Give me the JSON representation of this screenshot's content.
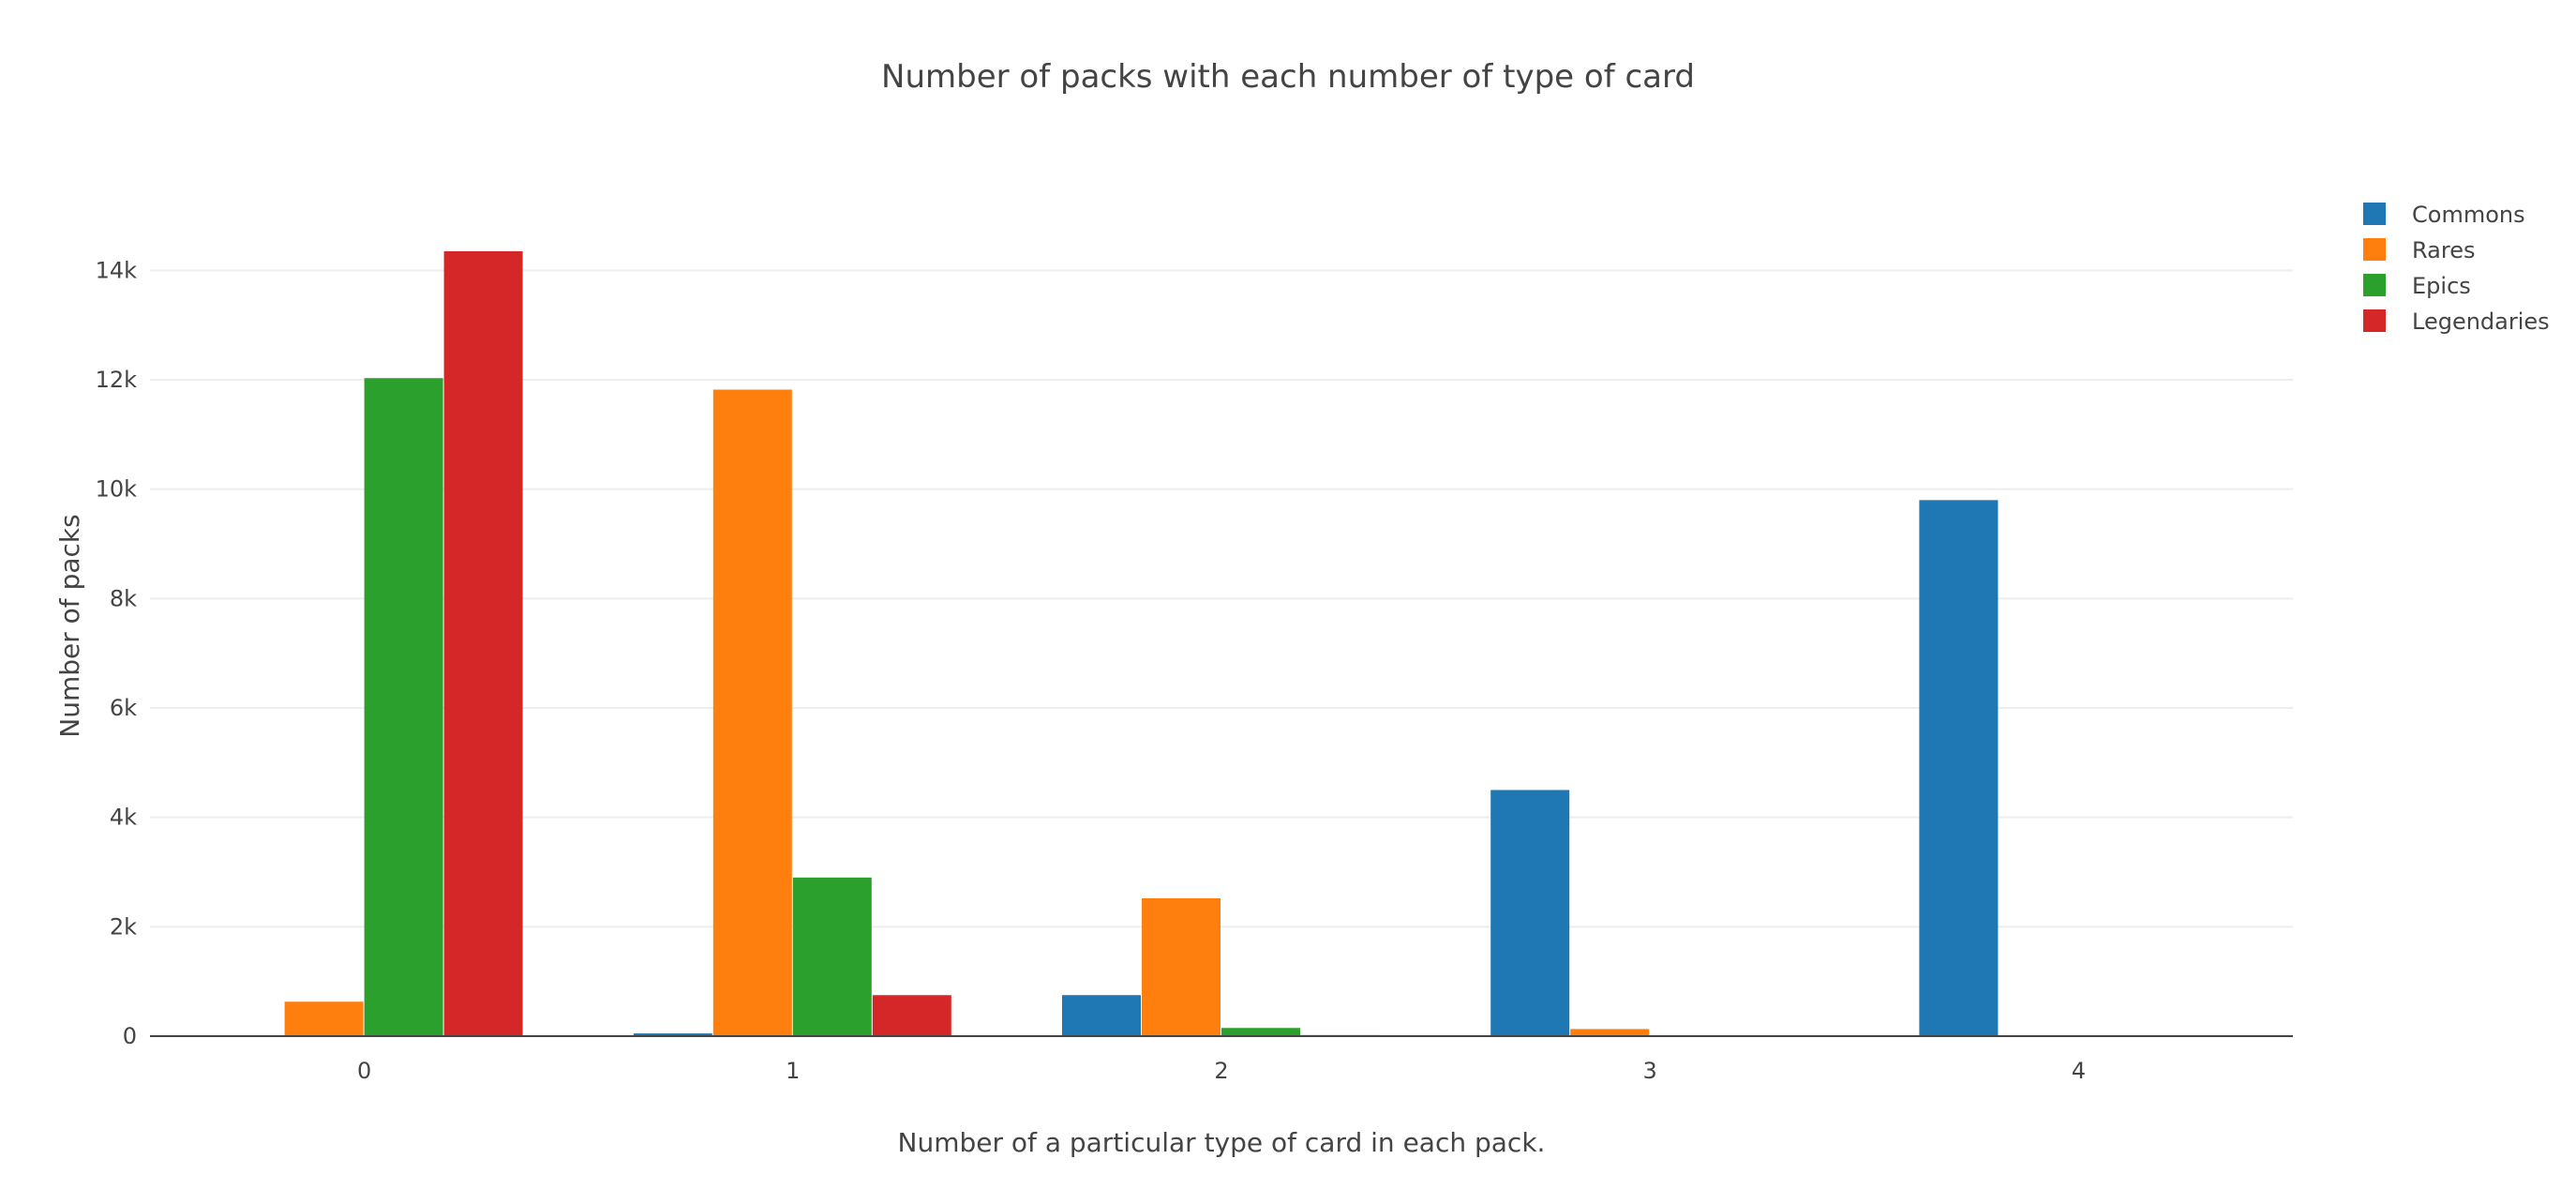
{
  "chart_data": {
    "type": "bar",
    "title": "Number of packs with each number of type of card",
    "xlabel": "Number of a particular type of card in each pack.",
    "ylabel": "Number of packs",
    "categories": [
      "0",
      "1",
      "2",
      "3",
      "4"
    ],
    "series": [
      {
        "name": "Commons",
        "color": "#1f77b4",
        "values": [
          0,
          50,
          750,
          4500,
          9800
        ]
      },
      {
        "name": "Rares",
        "color": "#ff7f0e",
        "values": [
          630,
          11820,
          2520,
          130,
          5
        ]
      },
      {
        "name": "Epics",
        "color": "#2ca02c",
        "values": [
          12030,
          2900,
          150,
          10,
          2
        ]
      },
      {
        "name": "Legendaries",
        "color": "#d62728",
        "values": [
          14350,
          750,
          20,
          2,
          0
        ]
      }
    ],
    "ylim": [
      0,
      15000
    ],
    "yticks": [
      0,
      2000,
      4000,
      6000,
      8000,
      10000,
      12000,
      14000
    ],
    "ytick_labels": [
      "0",
      "2k",
      "4k",
      "6k",
      "8k",
      "10k",
      "12k",
      "14k"
    ],
    "grid": true,
    "legend_position": "top-right"
  }
}
